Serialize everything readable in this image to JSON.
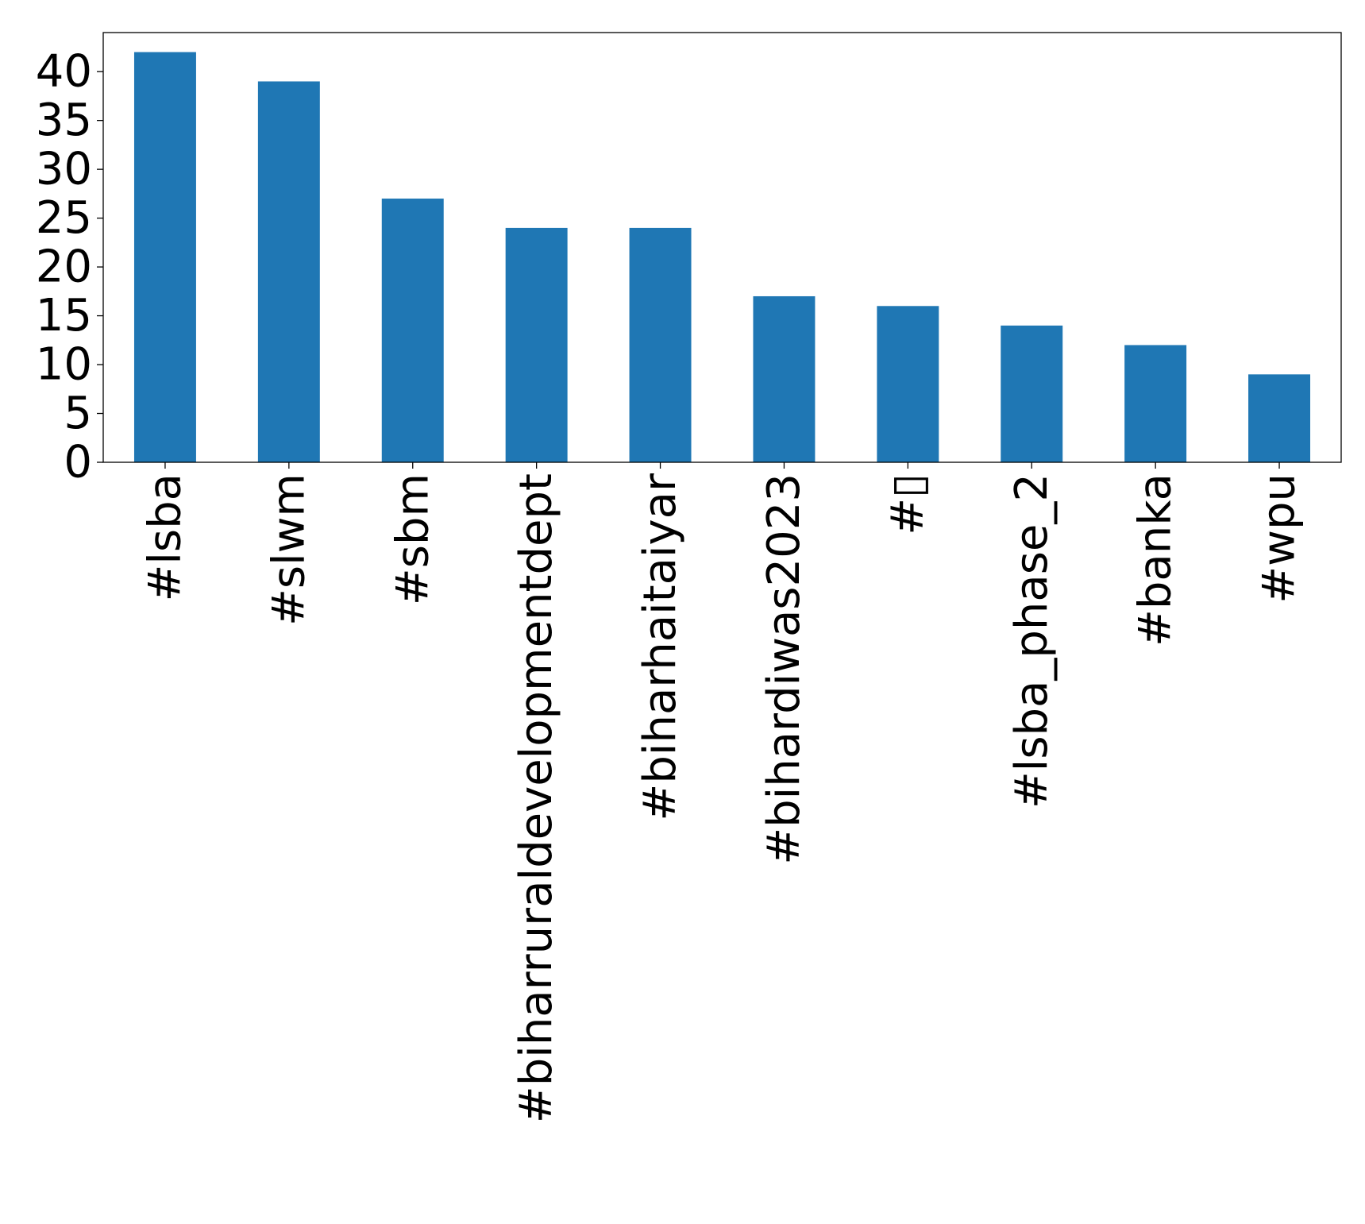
{
  "chart_data": {
    "type": "bar",
    "categories": [
      "#lsba",
      "#slwm",
      "#sbm",
      "#biharruraldevelopmentdept",
      "#biharhaitaiyar",
      "#bihardiwas2023",
      "#▯",
      "#lsba_phase_2",
      "#banka",
      "#wpu"
    ],
    "values": [
      42,
      39,
      27,
      24,
      24,
      17,
      16,
      14,
      12,
      9
    ],
    "title": "",
    "xlabel": "",
    "ylabel": "",
    "ylim": [
      0,
      44
    ],
    "yticks": [
      0,
      5,
      10,
      15,
      20,
      25,
      30,
      35,
      40
    ],
    "grid": false,
    "legend": "none",
    "bar_color": "#1f77b4"
  }
}
